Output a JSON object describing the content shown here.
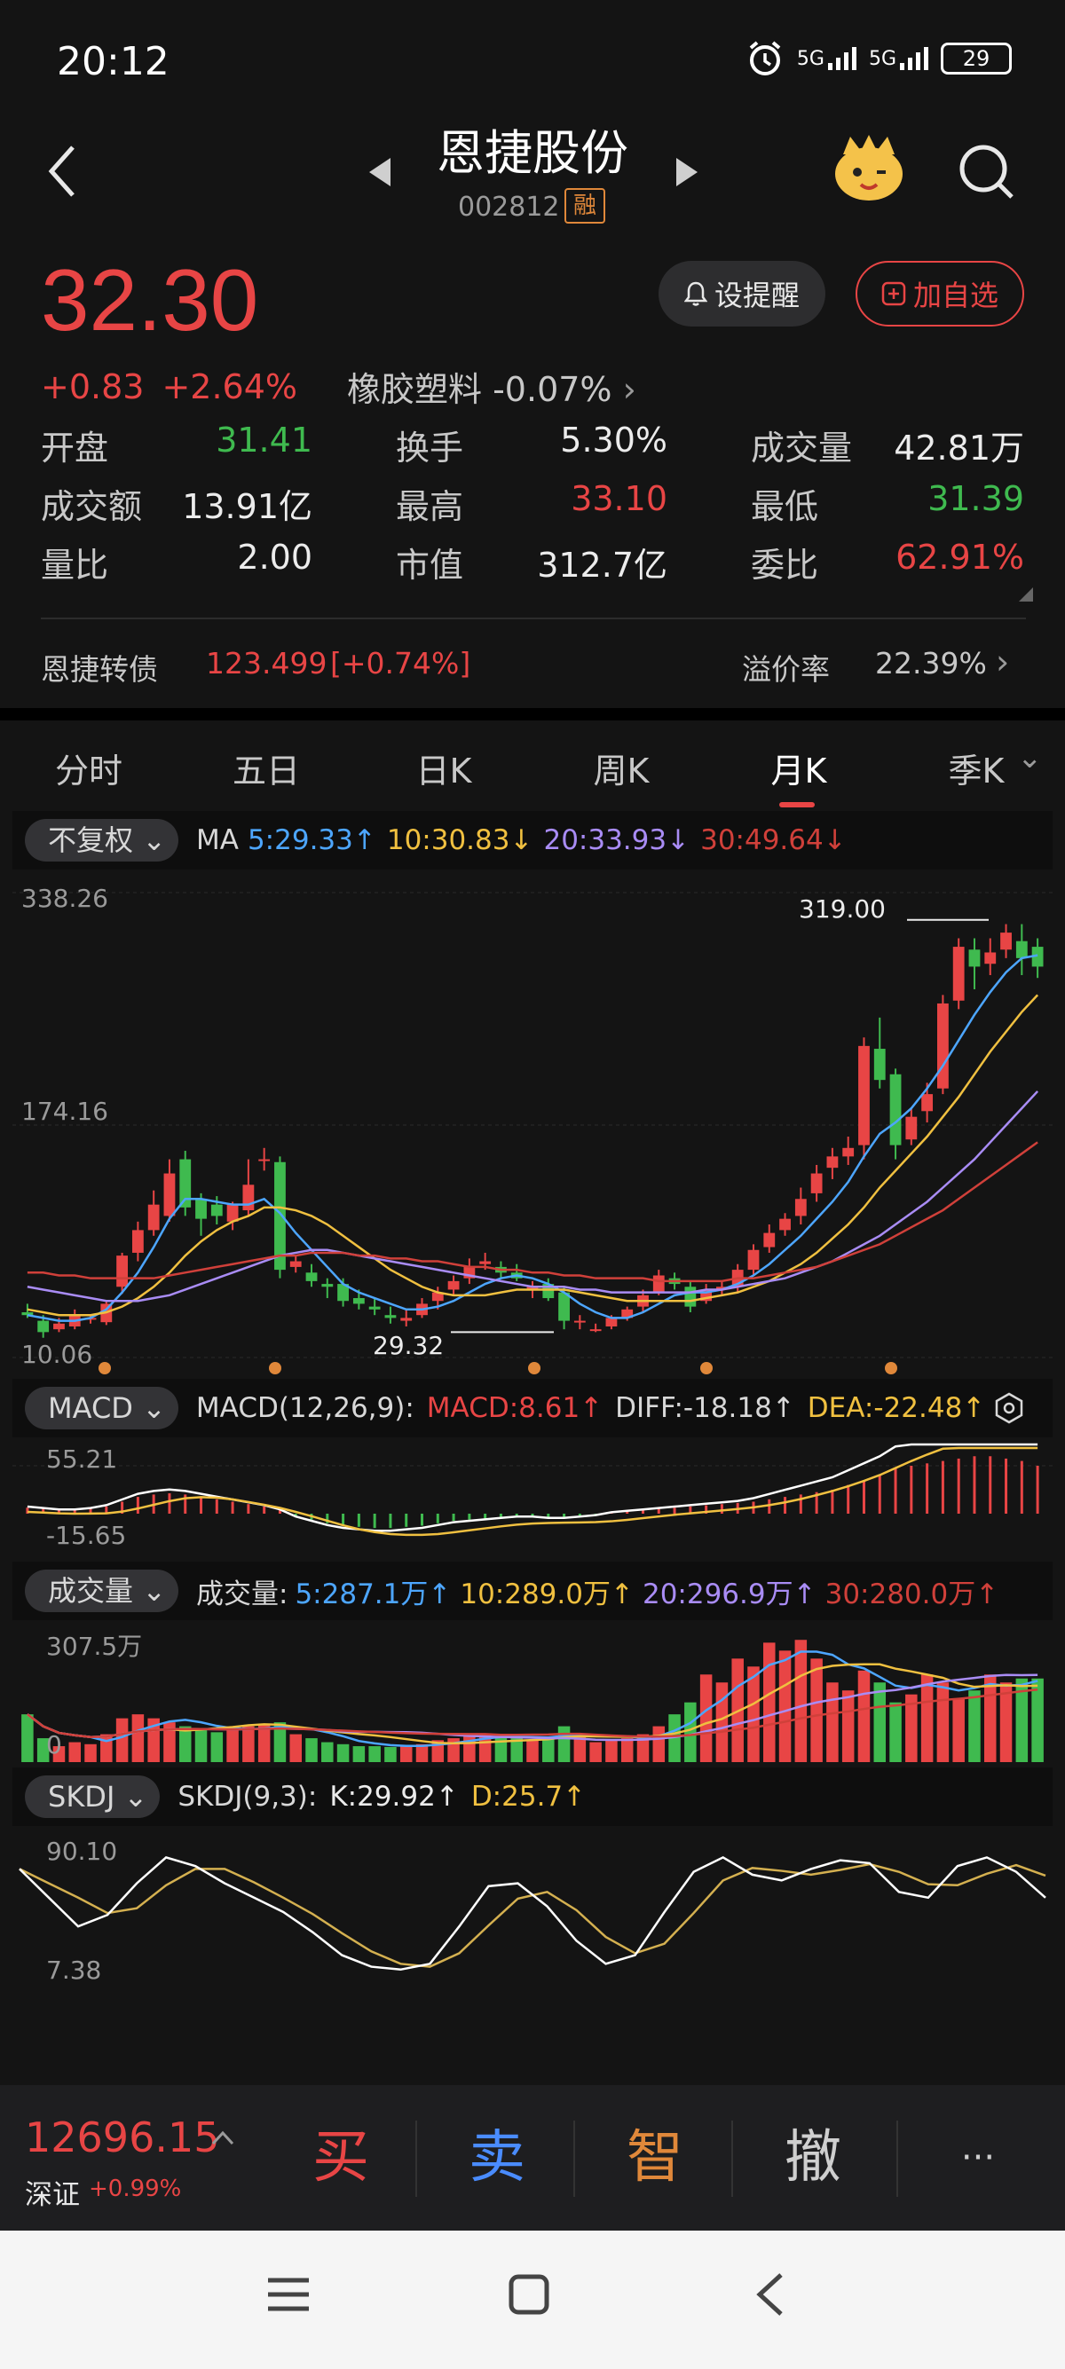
{
  "status": {
    "time": "20:12",
    "net1": "5G",
    "net2": "5G",
    "battery": "29"
  },
  "header": {
    "name": "恩捷股份",
    "code": "002812",
    "badge": "融"
  },
  "quote": {
    "price": "32.30",
    "change": "+0.83",
    "change_pct": "+2.64%",
    "sector": "橡胶塑料 -0.07%",
    "alert_label": "设提醒",
    "watch_label": "加自选"
  },
  "stats": [
    [
      {
        "label": "开盘",
        "value": "31.41",
        "color": "green"
      },
      {
        "label": "换手",
        "value": "5.30%",
        "color": "white"
      },
      {
        "label": "成交量",
        "value": "42.81万",
        "color": "white"
      }
    ],
    [
      {
        "label": "成交额",
        "value": "13.91亿",
        "color": "white"
      },
      {
        "label": "最高",
        "value": "33.10",
        "color": "red"
      },
      {
        "label": "最低",
        "value": "31.39",
        "color": "green"
      }
    ],
    [
      {
        "label": "量比",
        "value": "2.00",
        "color": "white"
      },
      {
        "label": "市值",
        "value": "312.7亿",
        "color": "white"
      },
      {
        "label": "委比",
        "value": "62.91%",
        "color": "red"
      }
    ]
  ],
  "convertible": {
    "name": "恩捷转债",
    "value": "123.499",
    "change": "[+0.74%]",
    "premium_label": "溢价率",
    "premium": "22.39%"
  },
  "tabs": [
    "分时",
    "五日",
    "日K",
    "周K",
    "月K",
    "季K"
  ],
  "active_tab": 4,
  "ma_bar": {
    "adjust": "不复权",
    "label": "MA",
    "ma5": "5:29.33↑",
    "ma10": "10:30.83↓",
    "ma20": "20:33.93↓",
    "ma30": "30:49.64↓"
  },
  "price_axis": {
    "top": "338.26",
    "mid": "174.16",
    "bottom": "10.06",
    "high_marker": "319.00",
    "low_marker": "29.32"
  },
  "macd_bar": {
    "name": "MACD",
    "params": "MACD(12,26,9):",
    "macd": "MACD:8.61↑",
    "diff": "DIFF:-18.18↑",
    "dea": "DEA:-22.48↑",
    "axis_top": "55.21",
    "axis_bottom": "-15.65"
  },
  "vol_bar": {
    "name": "成交量",
    "params": "成交量:",
    "v5": "5:287.1万↑",
    "v10": "10:289.0万↑",
    "v20": "20:296.9万↑",
    "v30": "30:280.0万↑",
    "axis_top": "307.5万",
    "axis_bottom": "0"
  },
  "skdj_bar": {
    "name": "SKDJ",
    "params": "SKDJ(9,3):",
    "k": "K:29.92↑",
    "d": "D:25.7↑",
    "axis_top": "90.10",
    "axis_bottom": "7.38"
  },
  "index": {
    "value": "12696.15",
    "name": "深证",
    "pct": "+0.99%"
  },
  "trade_buttons": [
    "买",
    "卖",
    "智",
    "撤",
    "···"
  ],
  "colors": {
    "up": "#e84545",
    "down": "#3fba4f",
    "ma5": "#4da6ff",
    "ma10": "#f0c040",
    "ma20": "#a98cf5",
    "ma30": "#d0403a"
  },
  "chart_data": {
    "type": "candlestick",
    "ylim": [
      10.06,
      338.26
    ],
    "candles": [
      [
        42,
        40,
        38,
        48
      ],
      [
        36,
        28,
        24,
        40
      ],
      [
        30,
        34,
        28,
        38
      ],
      [
        32,
        40,
        30,
        44
      ],
      [
        38,
        38,
        34,
        40
      ],
      [
        35,
        48,
        33,
        50
      ],
      [
        60,
        82,
        55,
        84
      ],
      [
        84,
        100,
        78,
        106
      ],
      [
        100,
        118,
        96,
        128
      ],
      [
        110,
        140,
        106,
        150
      ],
      [
        150,
        116,
        110,
        156
      ],
      [
        122,
        108,
        96,
        126
      ],
      [
        118,
        110,
        104,
        124
      ],
      [
        106,
        118,
        100,
        120
      ],
      [
        114,
        132,
        110,
        150
      ],
      [
        150,
        150,
        142,
        158
      ],
      [
        148,
        72,
        66,
        152
      ],
      [
        74,
        78,
        70,
        82
      ],
      [
        70,
        64,
        60,
        76
      ],
      [
        62,
        60,
        52,
        66
      ],
      [
        62,
        50,
        46,
        66
      ],
      [
        52,
        48,
        44,
        58
      ],
      [
        46,
        44,
        40,
        52
      ],
      [
        40,
        38,
        34,
        46
      ],
      [
        36,
        38,
        32,
        44
      ],
      [
        40,
        48,
        38,
        52
      ],
      [
        50,
        56,
        44,
        60
      ],
      [
        58,
        64,
        54,
        68
      ],
      [
        66,
        74,
        62,
        80
      ],
      [
        76,
        78,
        72,
        84
      ],
      [
        74,
        70,
        66,
        78
      ],
      [
        70,
        66,
        64,
        76
      ],
      [
        58,
        60,
        52,
        64
      ],
      [
        62,
        52,
        50,
        66
      ],
      [
        56,
        36,
        30,
        60
      ],
      [
        36,
        36,
        30,
        40
      ],
      [
        30,
        30,
        28,
        34
      ],
      [
        32,
        38,
        30,
        40
      ],
      [
        38,
        44,
        36,
        46
      ],
      [
        46,
        54,
        42,
        58
      ],
      [
        56,
        68,
        54,
        72
      ],
      [
        66,
        62,
        58,
        70
      ],
      [
        60,
        46,
        42,
        64
      ],
      [
        50,
        58,
        48,
        62
      ],
      [
        58,
        60,
        54,
        64
      ],
      [
        60,
        72,
        56,
        76
      ],
      [
        72,
        86,
        68,
        90
      ],
      [
        88,
        98,
        84,
        104
      ],
      [
        100,
        108,
        96,
        112
      ],
      [
        110,
        122,
        104,
        130
      ],
      [
        126,
        140,
        120,
        146
      ],
      [
        144,
        152,
        136,
        158
      ],
      [
        152,
        158,
        146,
        166
      ],
      [
        160,
        230,
        150,
        236
      ],
      [
        228,
        206,
        200,
        250
      ],
      [
        210,
        160,
        150,
        214
      ],
      [
        164,
        180,
        160,
        186
      ],
      [
        184,
        196,
        176,
        204
      ],
      [
        200,
        260,
        196,
        266
      ],
      [
        262,
        300,
        256,
        306
      ],
      [
        298,
        286,
        270,
        306
      ],
      [
        288,
        296,
        280,
        306
      ],
      [
        298,
        310,
        292,
        316
      ],
      [
        304,
        292,
        280,
        316
      ],
      [
        300,
        286,
        278,
        306
      ]
    ],
    "ma5": [
      40,
      38,
      36,
      36,
      38,
      44,
      56,
      70,
      88,
      108,
      122,
      122,
      120,
      118,
      118,
      122,
      112,
      98,
      86,
      74,
      62,
      56,
      52,
      48,
      44,
      44,
      46,
      50,
      56,
      62,
      66,
      68,
      66,
      62,
      56,
      48,
      42,
      38,
      38,
      42,
      48,
      54,
      56,
      56,
      58,
      62,
      68,
      76,
      86,
      96,
      108,
      120,
      134,
      152,
      168,
      176,
      186,
      200,
      216,
      234,
      252,
      268,
      282,
      292,
      294
    ],
    "ma10": [
      44,
      42,
      40,
      40,
      40,
      42,
      46,
      52,
      60,
      70,
      82,
      92,
      100,
      106,
      110,
      116,
      116,
      114,
      110,
      104,
      96,
      88,
      80,
      72,
      66,
      60,
      56,
      54,
      54,
      54,
      56,
      58,
      58,
      58,
      58,
      56,
      54,
      52,
      50,
      50,
      50,
      50,
      50,
      52,
      54,
      56,
      60,
      64,
      70,
      76,
      84,
      94,
      104,
      116,
      130,
      142,
      154,
      166,
      180,
      194,
      210,
      226,
      240,
      254,
      266
    ],
    "ma20": [
      60,
      58,
      56,
      54,
      52,
      50,
      50,
      50,
      52,
      54,
      58,
      62,
      66,
      70,
      74,
      78,
      82,
      84,
      86,
      86,
      84,
      82,
      80,
      78,
      76,
      74,
      72,
      70,
      68,
      66,
      64,
      62,
      60,
      60,
      60,
      58,
      58,
      56,
      56,
      56,
      56,
      56,
      56,
      58,
      58,
      60,
      62,
      64,
      66,
      70,
      74,
      78,
      84,
      90,
      96,
      104,
      112,
      120,
      130,
      140,
      150,
      162,
      174,
      186,
      198
    ],
    "ma30": [
      70,
      70,
      68,
      68,
      66,
      66,
      66,
      66,
      66,
      68,
      70,
      72,
      74,
      76,
      78,
      80,
      82,
      82,
      84,
      84,
      84,
      82,
      82,
      80,
      80,
      78,
      78,
      76,
      74,
      74,
      72,
      72,
      70,
      70,
      68,
      68,
      66,
      66,
      66,
      66,
      64,
      64,
      64,
      64,
      64,
      66,
      66,
      68,
      70,
      72,
      74,
      78,
      82,
      86,
      90,
      96,
      102,
      108,
      114,
      122,
      130,
      138,
      146,
      154,
      162
    ],
    "volume": [
      120,
      60,
      40,
      50,
      45,
      70,
      110,
      120,
      110,
      100,
      90,
      80,
      75,
      80,
      90,
      95,
      100,
      70,
      60,
      50,
      45,
      40,
      40,
      38,
      40,
      45,
      55,
      60,
      65,
      70,
      65,
      60,
      55,
      60,
      90,
      70,
      50,
      55,
      60,
      70,
      90,
      120,
      150,
      220,
      200,
      260,
      240,
      300,
      280,
      307,
      260,
      200,
      180,
      230,
      200,
      150,
      170,
      220,
      200,
      160,
      180,
      220,
      200,
      210,
      210
    ],
    "macd_hist": [
      5,
      4,
      3,
      3,
      4,
      6,
      10,
      14,
      16,
      17,
      16,
      14,
      12,
      10,
      8,
      6,
      3,
      -2,
      -5,
      -8,
      -10,
      -11,
      -12,
      -12,
      -11,
      -10,
      -8,
      -6,
      -5,
      -4,
      -3,
      -2,
      -2,
      -3,
      -3,
      -2,
      -1,
      1,
      2,
      3,
      4,
      5,
      6,
      7,
      8,
      9,
      10,
      12,
      14,
      16,
      18,
      20,
      24,
      28,
      32,
      38,
      40,
      42,
      44,
      46,
      48,
      48,
      46,
      44,
      40
    ],
    "skdj_k": [
      80,
      60,
      40,
      48,
      70,
      88,
      82,
      70,
      60,
      50,
      36,
      20,
      12,
      10,
      14,
      40,
      68,
      70,
      54,
      30,
      14,
      20,
      50,
      78,
      88,
      76,
      72,
      80,
      86,
      84,
      64,
      60,
      82,
      88,
      78,
      60
    ]
  }
}
